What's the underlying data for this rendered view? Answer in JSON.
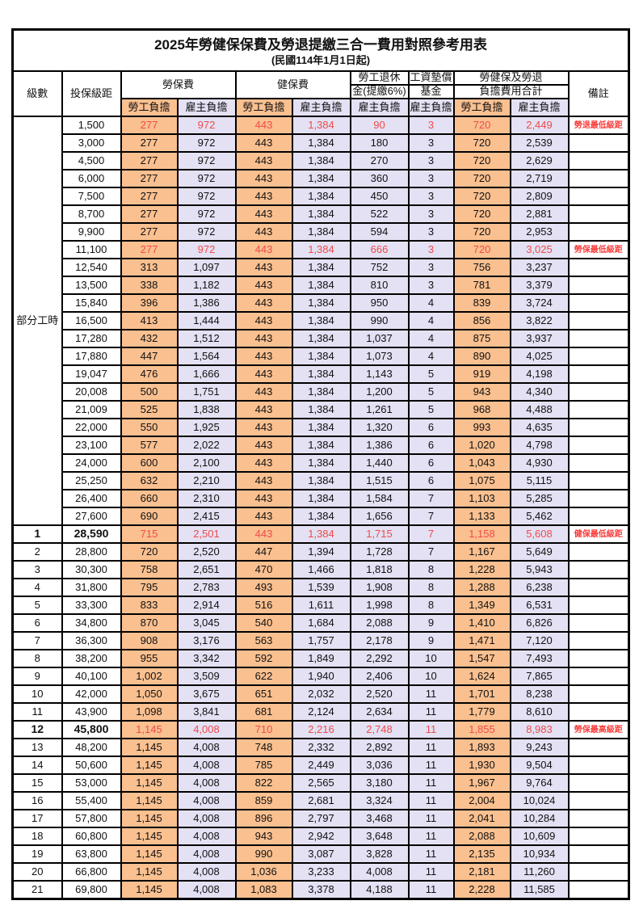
{
  "title": "2025年勞健保保費及勞退提繳三合一費用對照參考用表",
  "subtitle": "(民國114年1月1日起)",
  "header": {
    "level": "級數",
    "bracket": "投保級距",
    "labor_ins": "勞保費",
    "health_ins": "健保費",
    "pension_line1": "勞工退休",
    "pension_line2": "金(提繳6%)",
    "wage_fund_line1": "工資墊償",
    "wage_fund_line2": "基金",
    "total_line1": "勞健保及勞退",
    "total_line2": "負擔費用合計",
    "remark": "備註",
    "employee": "勞工負擔",
    "employer": "雇主負擔"
  },
  "part_time_label": "部分工時",
  "colors": {
    "employee_bg": "#FAC090",
    "employer_bg": "#E3E1F3",
    "highlight_text": "#F04A4A",
    "note_text": "#FA3B3B"
  },
  "rows": [
    {
      "level": null,
      "bracket": "1,500",
      "values": [
        "277",
        "972",
        "443",
        "1,384",
        "90",
        "3",
        "720",
        "2,449"
      ],
      "note": "勞退最低級距",
      "red": true,
      "bold": false
    },
    {
      "level": null,
      "bracket": "3,000",
      "values": [
        "277",
        "972",
        "443",
        "1,384",
        "180",
        "3",
        "720",
        "2,539"
      ],
      "note": "",
      "red": false,
      "bold": false
    },
    {
      "level": null,
      "bracket": "4,500",
      "values": [
        "277",
        "972",
        "443",
        "1,384",
        "270",
        "3",
        "720",
        "2,629"
      ],
      "note": "",
      "red": false,
      "bold": false
    },
    {
      "level": null,
      "bracket": "6,000",
      "values": [
        "277",
        "972",
        "443",
        "1,384",
        "360",
        "3",
        "720",
        "2,719"
      ],
      "note": "",
      "red": false,
      "bold": false
    },
    {
      "level": null,
      "bracket": "7,500",
      "values": [
        "277",
        "972",
        "443",
        "1,384",
        "450",
        "3",
        "720",
        "2,809"
      ],
      "note": "",
      "red": false,
      "bold": false
    },
    {
      "level": null,
      "bracket": "8,700",
      "values": [
        "277",
        "972",
        "443",
        "1,384",
        "522",
        "3",
        "720",
        "2,881"
      ],
      "note": "",
      "red": false,
      "bold": false
    },
    {
      "level": null,
      "bracket": "9,900",
      "values": [
        "277",
        "972",
        "443",
        "1,384",
        "594",
        "3",
        "720",
        "2,953"
      ],
      "note": "",
      "red": false,
      "bold": false
    },
    {
      "level": null,
      "bracket": "11,100",
      "values": [
        "277",
        "972",
        "443",
        "1,384",
        "666",
        "3",
        "720",
        "3,025"
      ],
      "note": "勞保最低級距",
      "red": true,
      "bold": false
    },
    {
      "level": null,
      "bracket": "12,540",
      "values": [
        "313",
        "1,097",
        "443",
        "1,384",
        "752",
        "3",
        "756",
        "3,237"
      ],
      "note": "",
      "red": false,
      "bold": false
    },
    {
      "level": null,
      "bracket": "13,500",
      "values": [
        "338",
        "1,182",
        "443",
        "1,384",
        "810",
        "3",
        "781",
        "3,379"
      ],
      "note": "",
      "red": false,
      "bold": false
    },
    {
      "level": null,
      "bracket": "15,840",
      "values": [
        "396",
        "1,386",
        "443",
        "1,384",
        "950",
        "4",
        "839",
        "3,724"
      ],
      "note": "",
      "red": false,
      "bold": false
    },
    {
      "level": null,
      "bracket": "16,500",
      "values": [
        "413",
        "1,444",
        "443",
        "1,384",
        "990",
        "4",
        "856",
        "3,822"
      ],
      "note": "",
      "red": false,
      "bold": false
    },
    {
      "level": null,
      "bracket": "17,280",
      "values": [
        "432",
        "1,512",
        "443",
        "1,384",
        "1,037",
        "4",
        "875",
        "3,937"
      ],
      "note": "",
      "red": false,
      "bold": false
    },
    {
      "level": null,
      "bracket": "17,880",
      "values": [
        "447",
        "1,564",
        "443",
        "1,384",
        "1,073",
        "4",
        "890",
        "4,025"
      ],
      "note": "",
      "red": false,
      "bold": false
    },
    {
      "level": null,
      "bracket": "19,047",
      "values": [
        "476",
        "1,666",
        "443",
        "1,384",
        "1,143",
        "5",
        "919",
        "4,198"
      ],
      "note": "",
      "red": false,
      "bold": false
    },
    {
      "level": null,
      "bracket": "20,008",
      "values": [
        "500",
        "1,751",
        "443",
        "1,384",
        "1,200",
        "5",
        "943",
        "4,340"
      ],
      "note": "",
      "red": false,
      "bold": false
    },
    {
      "level": null,
      "bracket": "21,009",
      "values": [
        "525",
        "1,838",
        "443",
        "1,384",
        "1,261",
        "5",
        "968",
        "4,488"
      ],
      "note": "",
      "red": false,
      "bold": false
    },
    {
      "level": null,
      "bracket": "22,000",
      "values": [
        "550",
        "1,925",
        "443",
        "1,384",
        "1,320",
        "6",
        "993",
        "4,635"
      ],
      "note": "",
      "red": false,
      "bold": false
    },
    {
      "level": null,
      "bracket": "23,100",
      "values": [
        "577",
        "2,022",
        "443",
        "1,384",
        "1,386",
        "6",
        "1,020",
        "4,798"
      ],
      "note": "",
      "red": false,
      "bold": false
    },
    {
      "level": null,
      "bracket": "24,000",
      "values": [
        "600",
        "2,100",
        "443",
        "1,384",
        "1,440",
        "6",
        "1,043",
        "4,930"
      ],
      "note": "",
      "red": false,
      "bold": false
    },
    {
      "level": null,
      "bracket": "25,250",
      "values": [
        "632",
        "2,210",
        "443",
        "1,384",
        "1,515",
        "6",
        "1,075",
        "5,115"
      ],
      "note": "",
      "red": false,
      "bold": false
    },
    {
      "level": null,
      "bracket": "26,400",
      "values": [
        "660",
        "2,310",
        "443",
        "1,384",
        "1,584",
        "7",
        "1,103",
        "5,285"
      ],
      "note": "",
      "red": false,
      "bold": false
    },
    {
      "level": null,
      "bracket": "27,600",
      "values": [
        "690",
        "2,415",
        "443",
        "1,384",
        "1,656",
        "7",
        "1,133",
        "5,462"
      ],
      "note": "",
      "red": false,
      "bold": false
    },
    {
      "level": "1",
      "bracket": "28,590",
      "values": [
        "715",
        "2,501",
        "443",
        "1,384",
        "1,715",
        "7",
        "1,158",
        "5,608"
      ],
      "note": "健保最低級距",
      "red": true,
      "bold": true
    },
    {
      "level": "2",
      "bracket": "28,800",
      "values": [
        "720",
        "2,520",
        "447",
        "1,394",
        "1,728",
        "7",
        "1,167",
        "5,649"
      ],
      "note": "",
      "red": false,
      "bold": false
    },
    {
      "level": "3",
      "bracket": "30,300",
      "values": [
        "758",
        "2,651",
        "470",
        "1,466",
        "1,818",
        "8",
        "1,228",
        "5,943"
      ],
      "note": "",
      "red": false,
      "bold": false
    },
    {
      "level": "4",
      "bracket": "31,800",
      "values": [
        "795",
        "2,783",
        "493",
        "1,539",
        "1,908",
        "8",
        "1,288",
        "6,238"
      ],
      "note": "",
      "red": false,
      "bold": false
    },
    {
      "level": "5",
      "bracket": "33,300",
      "values": [
        "833",
        "2,914",
        "516",
        "1,611",
        "1,998",
        "8",
        "1,349",
        "6,531"
      ],
      "note": "",
      "red": false,
      "bold": false
    },
    {
      "level": "6",
      "bracket": "34,800",
      "values": [
        "870",
        "3,045",
        "540",
        "1,684",
        "2,088",
        "9",
        "1,410",
        "6,826"
      ],
      "note": "",
      "red": false,
      "bold": false
    },
    {
      "level": "7",
      "bracket": "36,300",
      "values": [
        "908",
        "3,176",
        "563",
        "1,757",
        "2,178",
        "9",
        "1,471",
        "7,120"
      ],
      "note": "",
      "red": false,
      "bold": false
    },
    {
      "level": "8",
      "bracket": "38,200",
      "values": [
        "955",
        "3,342",
        "592",
        "1,849",
        "2,292",
        "10",
        "1,547",
        "7,493"
      ],
      "note": "",
      "red": false,
      "bold": false
    },
    {
      "level": "9",
      "bracket": "40,100",
      "values": [
        "1,002",
        "3,509",
        "622",
        "1,940",
        "2,406",
        "10",
        "1,624",
        "7,865"
      ],
      "note": "",
      "red": false,
      "bold": false
    },
    {
      "level": "10",
      "bracket": "42,000",
      "values": [
        "1,050",
        "3,675",
        "651",
        "2,032",
        "2,520",
        "11",
        "1,701",
        "8,238"
      ],
      "note": "",
      "red": false,
      "bold": false
    },
    {
      "level": "11",
      "bracket": "43,900",
      "values": [
        "1,098",
        "3,841",
        "681",
        "2,124",
        "2,634",
        "11",
        "1,779",
        "8,610"
      ],
      "note": "",
      "red": false,
      "bold": false
    },
    {
      "level": "12",
      "bracket": "45,800",
      "values": [
        "1,145",
        "4,008",
        "710",
        "2,216",
        "2,748",
        "11",
        "1,855",
        "8,983"
      ],
      "note": "勞保最高級距",
      "red": true,
      "bold": true
    },
    {
      "level": "13",
      "bracket": "48,200",
      "values": [
        "1,145",
        "4,008",
        "748",
        "2,332",
        "2,892",
        "11",
        "1,893",
        "9,243"
      ],
      "note": "",
      "red": false,
      "bold": false
    },
    {
      "level": "14",
      "bracket": "50,600",
      "values": [
        "1,145",
        "4,008",
        "785",
        "2,449",
        "3,036",
        "11",
        "1,930",
        "9,504"
      ],
      "note": "",
      "red": false,
      "bold": false
    },
    {
      "level": "15",
      "bracket": "53,000",
      "values": [
        "1,145",
        "4,008",
        "822",
        "2,565",
        "3,180",
        "11",
        "1,967",
        "9,764"
      ],
      "note": "",
      "red": false,
      "bold": false
    },
    {
      "level": "16",
      "bracket": "55,400",
      "values": [
        "1,145",
        "4,008",
        "859",
        "2,681",
        "3,324",
        "11",
        "2,004",
        "10,024"
      ],
      "note": "",
      "red": false,
      "bold": false
    },
    {
      "level": "17",
      "bracket": "57,800",
      "values": [
        "1,145",
        "4,008",
        "896",
        "2,797",
        "3,468",
        "11",
        "2,041",
        "10,284"
      ],
      "note": "",
      "red": false,
      "bold": false
    },
    {
      "level": "18",
      "bracket": "60,800",
      "values": [
        "1,145",
        "4,008",
        "943",
        "2,942",
        "3,648",
        "11",
        "2,088",
        "10,609"
      ],
      "note": "",
      "red": false,
      "bold": false
    },
    {
      "level": "19",
      "bracket": "63,800",
      "values": [
        "1,145",
        "4,008",
        "990",
        "3,087",
        "3,828",
        "11",
        "2,135",
        "10,934"
      ],
      "note": "",
      "red": false,
      "bold": false
    },
    {
      "level": "20",
      "bracket": "66,800",
      "values": [
        "1,145",
        "4,008",
        "1,036",
        "3,233",
        "4,008",
        "11",
        "2,181",
        "11,260"
      ],
      "note": "",
      "red": false,
      "bold": false
    },
    {
      "level": "21",
      "bracket": "69,800",
      "values": [
        "1,145",
        "4,008",
        "1,083",
        "3,378",
        "4,188",
        "11",
        "2,228",
        "11,585"
      ],
      "note": "",
      "red": false,
      "bold": false
    }
  ]
}
